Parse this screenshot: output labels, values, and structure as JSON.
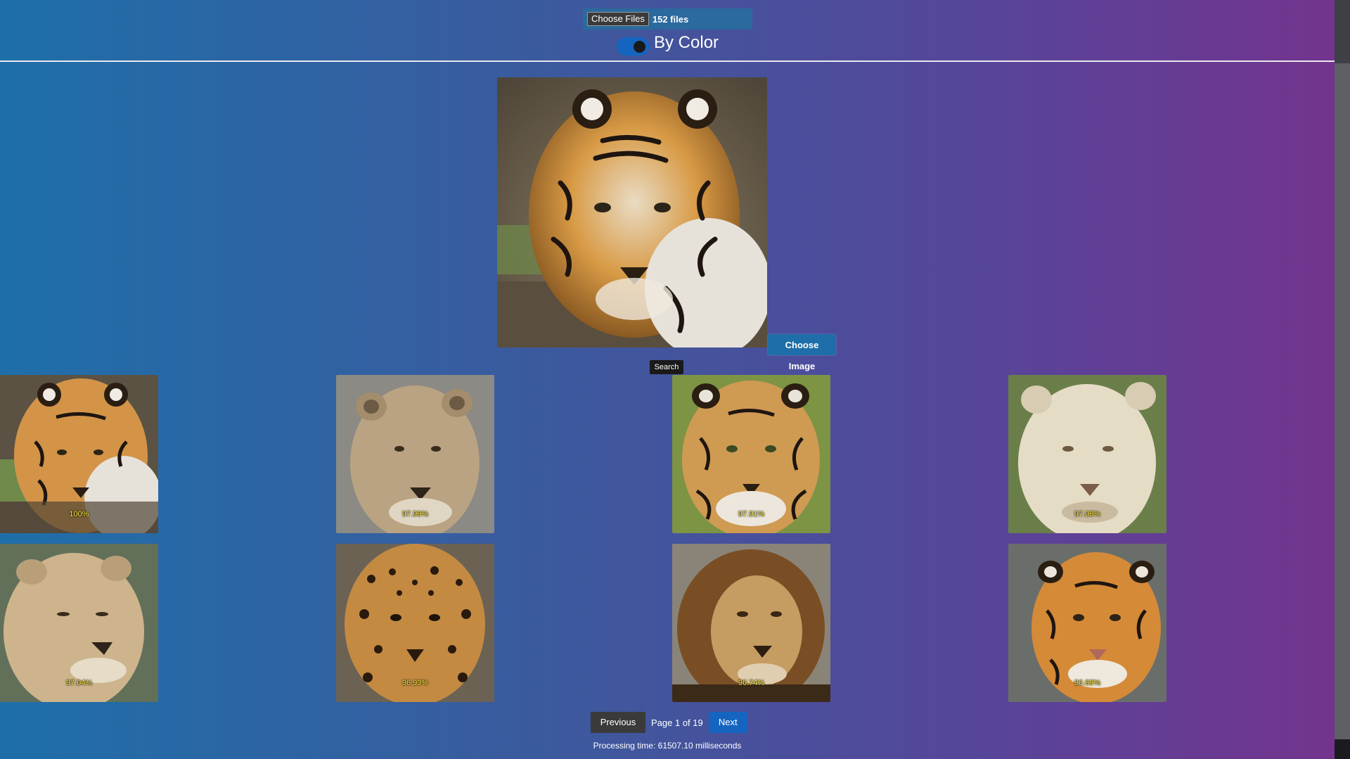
{
  "upload": {
    "choose_files_label": "Choose Files",
    "file_count": "152 files"
  },
  "toggle": {
    "label": "By Color",
    "on": true
  },
  "query": {
    "choose_image_label": "Choose Image",
    "search_label": "Search",
    "subject": "tiger"
  },
  "results": [
    {
      "subject": "tiger",
      "score": "100%"
    },
    {
      "subject": "lioness",
      "score": "97.99%"
    },
    {
      "subject": "tiger",
      "score": "97.91%"
    },
    {
      "subject": "white lioness",
      "score": "97.08%"
    },
    {
      "subject": "lioness",
      "score": "97.04%"
    },
    {
      "subject": "jaguar",
      "score": "96.93%"
    },
    {
      "subject": "lion",
      "score": "96.74%"
    },
    {
      "subject": "tiger",
      "score": "96.69%"
    }
  ],
  "pagination": {
    "previous_label": "Previous",
    "page_label": "Page 1 of 19",
    "next_label": "Next"
  },
  "status": {
    "processing_time": "Processing time: 61507.10 milliseconds"
  },
  "colors": {
    "accent": "#1565c0",
    "score_text": "#ffeb3b"
  }
}
